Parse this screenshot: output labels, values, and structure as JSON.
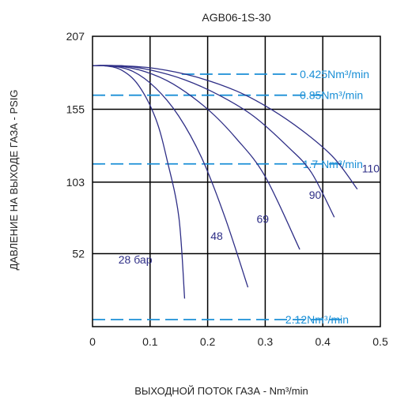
{
  "chart_data": {
    "type": "line",
    "title": "AGB06-1S-30",
    "xlabel": "ВЫХОДНОЙ ПОТОК ГАЗА - Nm³/min",
    "ylabel": "ДАВЛЕНИЕ НА ВЫХОДЕ ГАЗА - PSIG",
    "xlim": [
      0,
      0.5
    ],
    "ylim": [
      0,
      207
    ],
    "x_ticks": [
      0,
      0.1,
      0.2,
      0.3,
      0.4,
      0.5
    ],
    "x_tick_labels": [
      "0",
      "0.1",
      "0.2",
      "0.3",
      "0.4",
      "0.5"
    ],
    "y_ticks": [
      52,
      103,
      155,
      207
    ],
    "y_tick_labels": [
      "52",
      "103",
      "155",
      "207"
    ],
    "grid": true,
    "curve_color": "#2e2e86",
    "reference_color": "#1a8fd6",
    "series": [
      {
        "name": "28 бар",
        "x": [
          0,
          0.02,
          0.05,
          0.08,
          0.11,
          0.13,
          0.15,
          0.16
        ],
        "y": [
          186,
          186,
          183,
          172,
          148,
          118,
          78,
          20
        ]
      },
      {
        "name": "48",
        "x": [
          0,
          0.03,
          0.07,
          0.11,
          0.15,
          0.19,
          0.23,
          0.27
        ],
        "y": [
          186,
          186,
          182,
          170,
          150,
          120,
          78,
          28
        ]
      },
      {
        "name": "69",
        "x": [
          0,
          0.04,
          0.09,
          0.14,
          0.2,
          0.25,
          0.3,
          0.36
        ],
        "y": [
          186,
          186,
          182,
          173,
          155,
          134,
          107,
          55
        ]
      },
      {
        "name": "90",
        "x": [
          0,
          0.05,
          0.1,
          0.16,
          0.22,
          0.28,
          0.34,
          0.38,
          0.42
        ],
        "y": [
          186,
          186,
          183,
          176,
          165,
          150,
          128,
          110,
          78
        ]
      },
      {
        "name": "110",
        "x": [
          0,
          0.05,
          0.11,
          0.18,
          0.25,
          0.31,
          0.37,
          0.42,
          0.46
        ],
        "y": [
          186,
          186,
          184,
          178,
          168,
          155,
          138,
          120,
          98
        ]
      }
    ],
    "curve_labels": [
      {
        "text": "28 бар",
        "x": 0.045,
        "y": 45
      },
      {
        "text": "48",
        "x": 0.205,
        "y": 62
      },
      {
        "text": "69",
        "x": 0.285,
        "y": 74
      },
      {
        "text": "90",
        "x": 0.376,
        "y": 91
      },
      {
        "text": "110",
        "x": 0.468,
        "y": 110
      }
    ],
    "reference_lines": [
      {
        "label": "0.425Nm³/min",
        "y": 180,
        "x_start": 0.155,
        "x_end": 0.355,
        "label_x": 0.36
      },
      {
        "label": "0.85Nm³/min",
        "y": 165,
        "x_start": 0,
        "x_end": 0.4,
        "label_x": 0.36
      },
      {
        "label": "1.7 Nm³/min",
        "y": 116,
        "x_start": 0,
        "x_end": 0.44,
        "label_x": 0.365
      },
      {
        "label": "2.12Nm³/min",
        "y": 5,
        "x_start": 0,
        "x_end": 0.44,
        "label_x": 0.335
      }
    ]
  }
}
